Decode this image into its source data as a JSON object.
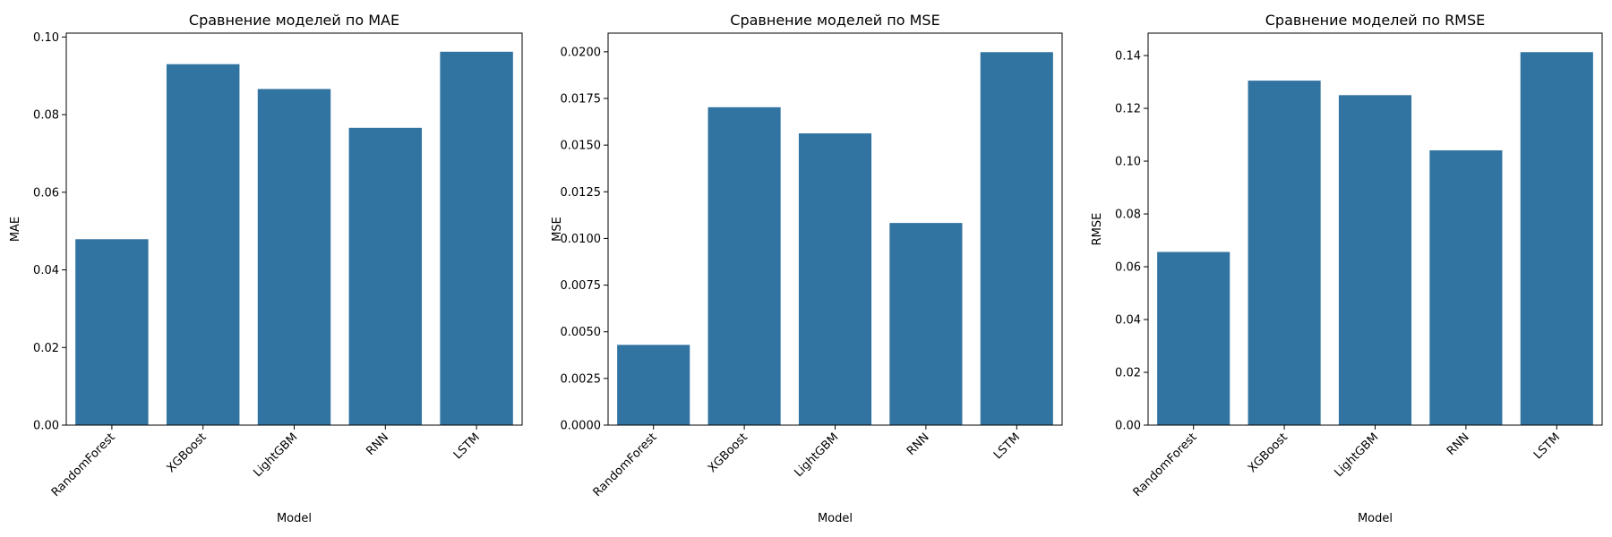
{
  "chart_data": [
    {
      "type": "bar",
      "title": "Сравнение моделей по MAE",
      "xlabel": "Model",
      "ylabel": "MAE",
      "categories": [
        "RandomForest",
        "XGBoost",
        "LightGBM",
        "RNN",
        "LSTM"
      ],
      "values": [
        0.0479,
        0.093,
        0.0866,
        0.0766,
        0.0962
      ],
      "ylim": [
        0,
        0.101
      ],
      "yticks": [
        0.0,
        0.02,
        0.04,
        0.06,
        0.08,
        0.1
      ],
      "ytick_labels": [
        "0.00",
        "0.02",
        "0.04",
        "0.06",
        "0.08",
        "0.10"
      ],
      "grid": false,
      "bar_color": "#3274a1"
    },
    {
      "type": "bar",
      "title": "Сравнение моделей по MSE",
      "xlabel": "Model",
      "ylabel": "MSE",
      "categories": [
        "RandomForest",
        "XGBoost",
        "LightGBM",
        "RNN",
        "LSTM"
      ],
      "values": [
        0.0043,
        0.01703,
        0.01563,
        0.01083,
        0.01998
      ],
      "ylim": [
        0,
        0.021
      ],
      "yticks": [
        0.0,
        0.0025,
        0.005,
        0.0075,
        0.01,
        0.0125,
        0.015,
        0.0175,
        0.02
      ],
      "ytick_labels": [
        "0.0000",
        "0.0025",
        "0.0050",
        "0.0075",
        "0.0100",
        "0.0125",
        "0.0150",
        "0.0175",
        "0.0200"
      ],
      "grid": false,
      "bar_color": "#3274a1"
    },
    {
      "type": "bar",
      "title": "Сравнение моделей по RMSE",
      "xlabel": "Model",
      "ylabel": "RMSE",
      "categories": [
        "RandomForest",
        "XGBoost",
        "LightGBM",
        "RNN",
        "LSTM"
      ],
      "values": [
        0.0656,
        0.1305,
        0.125,
        0.1041,
        0.1413
      ],
      "ylim": [
        0,
        0.1485
      ],
      "yticks": [
        0.0,
        0.02,
        0.04,
        0.06,
        0.08,
        0.1,
        0.12,
        0.14
      ],
      "ytick_labels": [
        "0.00",
        "0.02",
        "0.04",
        "0.06",
        "0.08",
        "0.10",
        "0.12",
        "0.14"
      ],
      "grid": false,
      "bar_color": "#3274a1"
    }
  ]
}
